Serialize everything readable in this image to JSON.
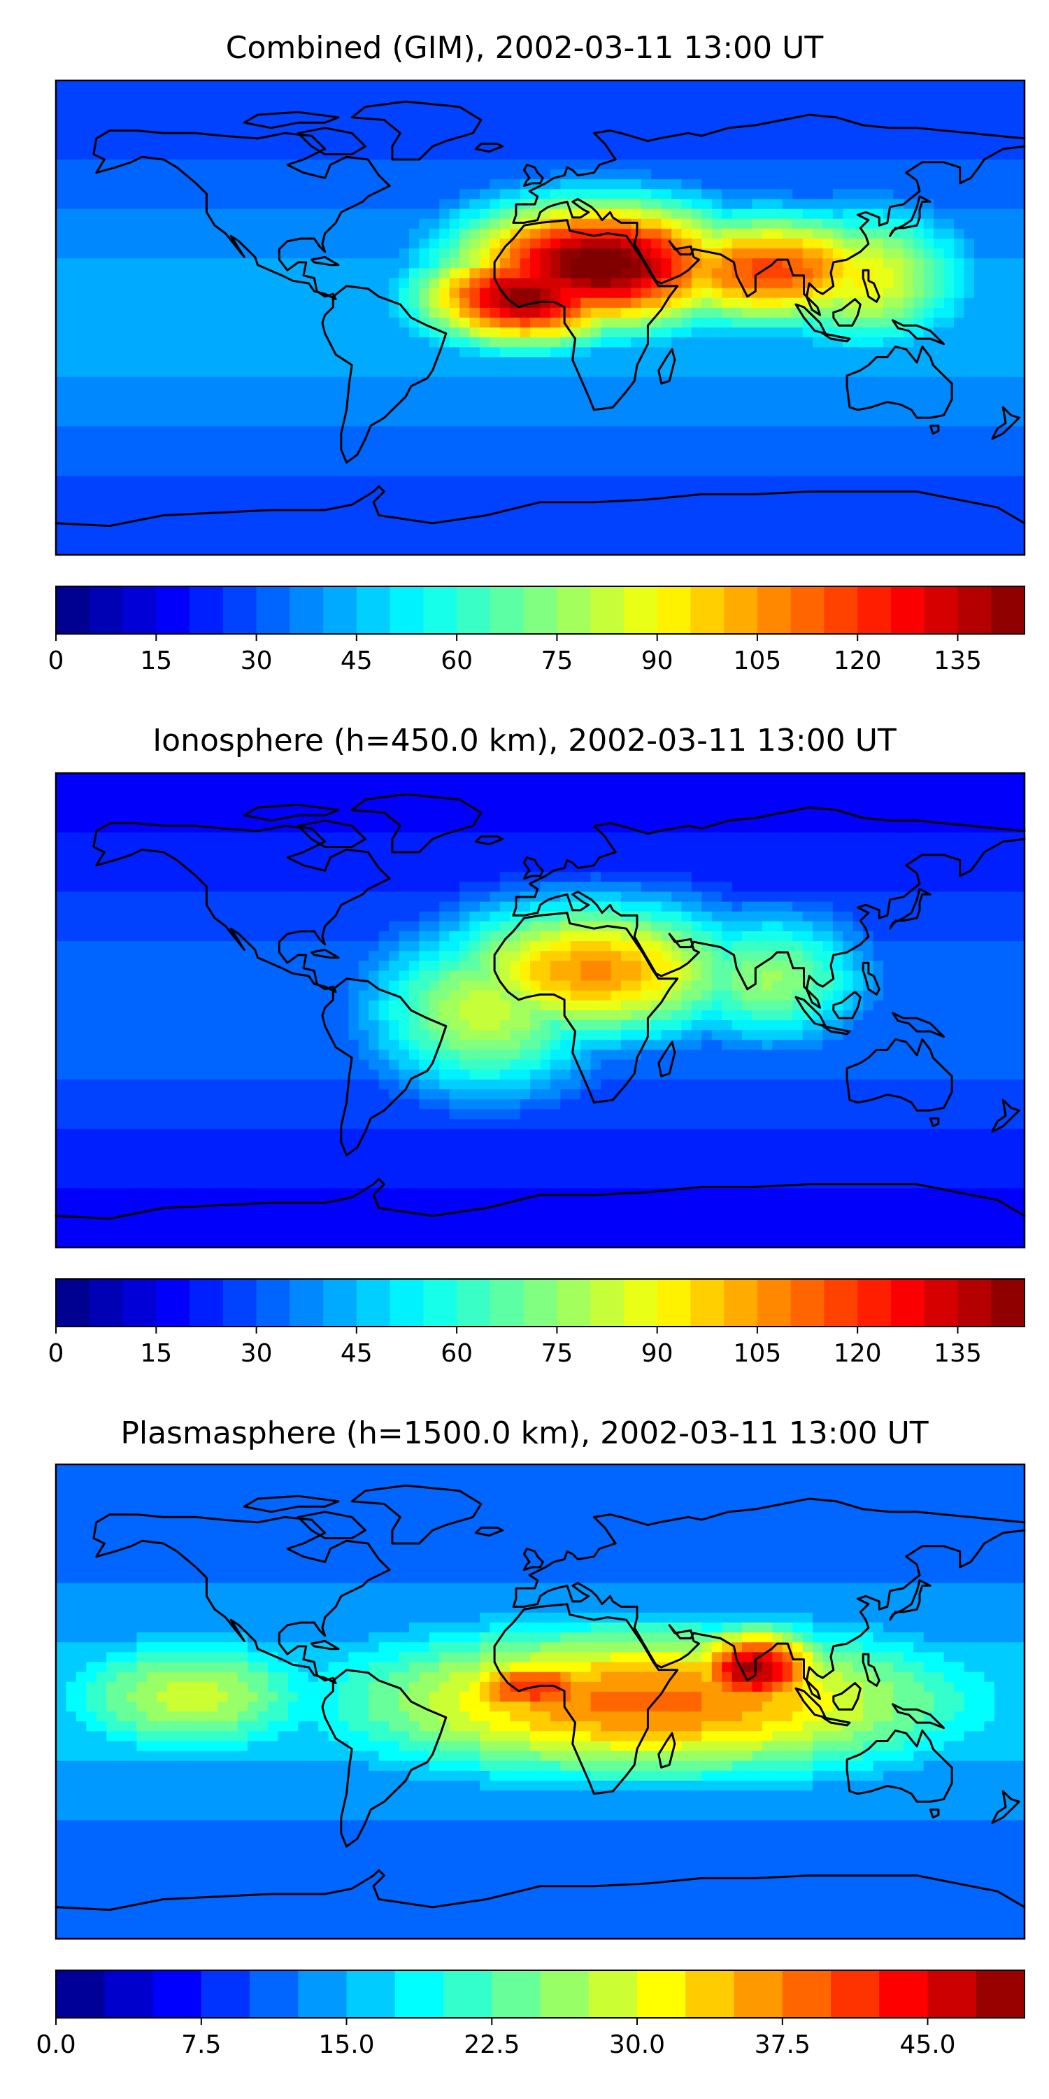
{
  "figure": {
    "panels": [
      {
        "id": "combined",
        "title": "Combined (GIM), 2002-03-11 13:00 UT",
        "colorbar": {
          "levels": 29,
          "vmin": 0,
          "vmax": 145,
          "ticks": [
            "0",
            "15",
            "30",
            "45",
            "60",
            "75",
            "90",
            "105",
            "120",
            "135"
          ]
        },
        "hotspots": [
          {
            "lon": 22,
            "lat": 20,
            "level": 0.93,
            "spread_lon": 40,
            "spread_lat": 18
          },
          {
            "lon": -5,
            "lat": 8,
            "level": 0.88,
            "spread_lon": 30,
            "spread_lat": 14
          },
          {
            "lon": 85,
            "lat": 18,
            "level": 0.7,
            "spread_lon": 40,
            "spread_lat": 16
          },
          {
            "lon": 120,
            "lat": 15,
            "level": 0.52,
            "spread_lon": 30,
            "spread_lat": 20
          }
        ],
        "background_level": 0.18
      },
      {
        "id": "ionosphere",
        "title": "Ionosphere  (h=450.0 km), 2002-03-11 13:00 UT",
        "colorbar": {
          "levels": 29,
          "vmin": 0,
          "vmax": 145,
          "ticks": [
            "0",
            "15",
            "30",
            "45",
            "60",
            "75",
            "90",
            "105",
            "120",
            "135"
          ]
        },
        "hotspots": [
          {
            "lon": 20,
            "lat": 15,
            "level": 0.66,
            "spread_lon": 45,
            "spread_lat": 20
          },
          {
            "lon": -20,
            "lat": 0,
            "level": 0.5,
            "spread_lon": 35,
            "spread_lat": 25
          },
          {
            "lon": 85,
            "lat": 12,
            "level": 0.45,
            "spread_lon": 30,
            "spread_lat": 20
          }
        ],
        "background_level": 0.12
      },
      {
        "id": "plasmasphere",
        "title": "Plasmasphere (h=1500.0 km), 2002-03-11 13:00 UT",
        "colorbar": {
          "levels": 20,
          "vmin": 0,
          "vmax": 50,
          "ticks": [
            "0.0",
            "7.5",
            "15.0",
            "22.5",
            "30.0",
            "37.5",
            "45.0"
          ]
        },
        "hotspots": [
          {
            "lon": 80,
            "lat": 12,
            "level": 0.85,
            "spread_lon": 20,
            "spread_lat": 12
          },
          {
            "lon": -2,
            "lat": 5,
            "level": 0.72,
            "spread_lon": 28,
            "spread_lat": 10
          },
          {
            "lon": 40,
            "lat": 0,
            "level": 0.65,
            "spread_lon": 90,
            "spread_lat": 22
          },
          {
            "lon": -130,
            "lat": 2,
            "level": 0.45,
            "spread_lon": 40,
            "spread_lat": 18
          }
        ],
        "background_level": 0.2
      }
    ]
  }
}
